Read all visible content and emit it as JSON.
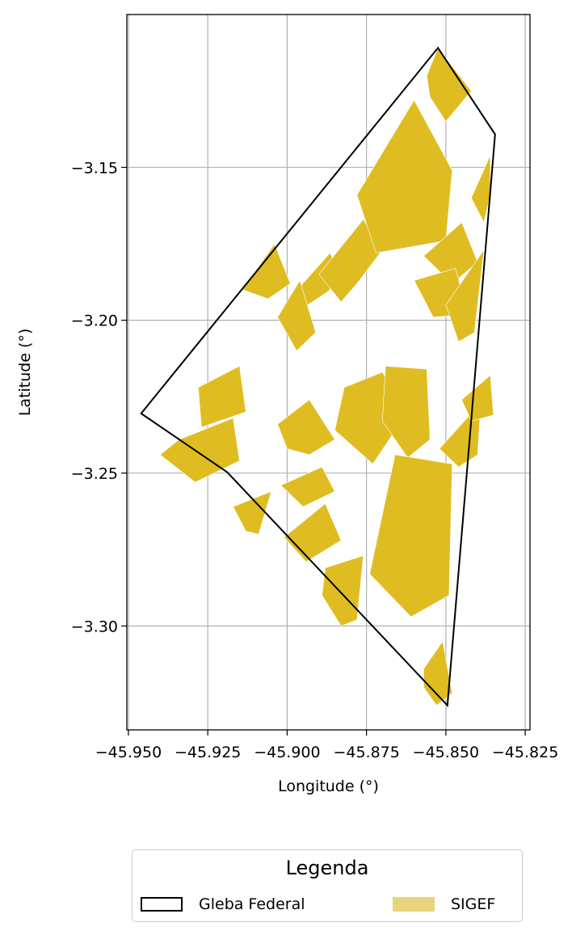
{
  "chart_data": {
    "type": "map",
    "xlabel": "Longitude (°)",
    "ylabel": "Latitude (°)",
    "xlim": [
      -45.9505,
      -45.8235
    ],
    "ylim": [
      -3.334,
      -3.1
    ],
    "xticks": [
      -45.95,
      -45.925,
      -45.9,
      -45.875,
      -45.85,
      -45.825
    ],
    "xtick_labels": [
      "−45.950",
      "−45.925",
      "−45.900",
      "−45.875",
      "−45.850",
      "−45.825"
    ],
    "yticks": [
      -3.15,
      -3.2,
      -3.25,
      -3.3
    ],
    "ytick_labels": [
      "−3.15",
      "−3.20",
      "−3.25",
      "−3.30"
    ],
    "grid": true,
    "colors": {
      "gleba_edge": "#000000",
      "sigef_fill": "#dfbd22",
      "sigef_legend": "#e8d47a",
      "grid": "#b0b0b0"
    },
    "gleba_federal": [
      [
        -45.946,
        -3.2305
      ],
      [
        -45.8525,
        -3.1109
      ],
      [
        -45.8345,
        -3.1392
      ],
      [
        -45.8495,
        -3.326
      ],
      [
        -45.9189,
        -3.2497
      ]
    ],
    "sigef_parcels": [
      [
        [
          -45.8985,
          -3.192
        ],
        [
          -45.8865,
          -3.178
        ],
        [
          -45.883,
          -3.185
        ],
        [
          -45.887,
          -3.1905
        ],
        [
          -45.895,
          -3.196
        ]
      ],
      [
        [
          -45.89,
          -3.185
        ],
        [
          -45.876,
          -3.167
        ],
        [
          -45.87,
          -3.177
        ],
        [
          -45.878,
          -3.188
        ],
        [
          -45.883,
          -3.194
        ]
      ],
      [
        [
          -45.878,
          -3.159
        ],
        [
          -45.86,
          -3.128
        ],
        [
          -45.848,
          -3.151
        ],
        [
          -45.85,
          -3.174
        ],
        [
          -45.872,
          -3.178
        ]
      ],
      [
        [
          -45.856,
          -3.12
        ],
        [
          -45.8525,
          -3.1109
        ],
        [
          -45.842,
          -3.125
        ],
        [
          -45.85,
          -3.135
        ],
        [
          -45.855,
          -3.127
        ]
      ],
      [
        [
          -45.842,
          -3.16
        ],
        [
          -45.836,
          -3.146
        ],
        [
          -45.836,
          -3.159
        ],
        [
          -45.838,
          -3.168
        ]
      ],
      [
        [
          -45.857,
          -3.179
        ],
        [
          -45.845,
          -3.168
        ],
        [
          -45.84,
          -3.181
        ],
        [
          -45.848,
          -3.188
        ]
      ],
      [
        [
          -45.86,
          -3.187
        ],
        [
          -45.847,
          -3.183
        ],
        [
          -45.843,
          -3.198
        ],
        [
          -45.854,
          -3.199
        ]
      ],
      [
        [
          -45.85,
          -3.195
        ],
        [
          -45.838,
          -3.177
        ],
        [
          -45.841,
          -3.204
        ],
        [
          -45.846,
          -3.207
        ]
      ],
      [
        [
          -45.882,
          -3.222
        ],
        [
          -45.87,
          -3.217
        ],
        [
          -45.862,
          -3.23
        ],
        [
          -45.873,
          -3.247
        ],
        [
          -45.885,
          -3.236
        ]
      ],
      [
        [
          -45.869,
          -3.215
        ],
        [
          -45.856,
          -3.216
        ],
        [
          -45.855,
          -3.239
        ],
        [
          -45.862,
          -3.245
        ],
        [
          -45.87,
          -3.233
        ]
      ],
      [
        [
          -45.866,
          -3.244
        ],
        [
          -45.848,
          -3.247
        ],
        [
          -45.849,
          -3.29
        ],
        [
          -45.861,
          -3.297
        ],
        [
          -45.874,
          -3.283
        ]
      ],
      [
        [
          -45.839,
          -3.227
        ],
        [
          -45.852,
          -3.242
        ],
        [
          -45.846,
          -3.248
        ],
        [
          -45.84,
          -3.244
        ]
      ],
      [
        [
          -45.903,
          -3.234
        ],
        [
          -45.893,
          -3.226
        ],
        [
          -45.885,
          -3.239
        ],
        [
          -45.893,
          -3.244
        ],
        [
          -45.9,
          -3.242
        ]
      ],
      [
        [
          -45.902,
          -3.254
        ],
        [
          -45.889,
          -3.248
        ],
        [
          -45.885,
          -3.256
        ],
        [
          -45.895,
          -3.261
        ]
      ],
      [
        [
          -45.901,
          -3.271
        ],
        [
          -45.888,
          -3.26
        ],
        [
          -45.883,
          -3.272
        ],
        [
          -45.894,
          -3.279
        ]
      ],
      [
        [
          -45.888,
          -3.281
        ],
        [
          -45.876,
          -3.277
        ],
        [
          -45.878,
          -3.298
        ],
        [
          -45.883,
          -3.3
        ],
        [
          -45.889,
          -3.29
        ]
      ],
      [
        [
          -45.928,
          -3.222
        ],
        [
          -45.915,
          -3.215
        ],
        [
          -45.913,
          -3.23
        ],
        [
          -45.927,
          -3.235
        ]
      ],
      [
        [
          -45.934,
          -3.239
        ],
        [
          -45.917,
          -3.232
        ],
        [
          -45.915,
          -3.246
        ],
        [
          -45.929,
          -3.253
        ],
        [
          -45.94,
          -3.244
        ]
      ],
      [
        [
          -45.917,
          -3.261
        ],
        [
          -45.905,
          -3.256
        ],
        [
          -45.909,
          -3.27
        ],
        [
          -45.913,
          -3.269
        ]
      ],
      [
        [
          -45.903,
          -3.199
        ],
        [
          -45.896,
          -3.187
        ],
        [
          -45.891,
          -3.204
        ],
        [
          -45.897,
          -3.21
        ]
      ],
      [
        [
          -45.914,
          -3.19
        ],
        [
          -45.904,
          -3.175
        ],
        [
          -45.899,
          -3.188
        ],
        [
          -45.906,
          -3.193
        ]
      ],
      [
        [
          -45.857,
          -3.314
        ],
        [
          -45.851,
          -3.305
        ],
        [
          -45.848,
          -3.322
        ],
        [
          -45.853,
          -3.326
        ],
        [
          -45.857,
          -3.32
        ]
      ],
      [
        [
          -45.845,
          -3.226
        ],
        [
          -45.836,
          -3.218
        ],
        [
          -45.835,
          -3.231
        ],
        [
          -45.842,
          -3.233
        ]
      ]
    ]
  },
  "legend": {
    "title": "Legenda",
    "items": [
      {
        "label": "Gleba Federal"
      },
      {
        "label": "SIGEF"
      }
    ]
  }
}
